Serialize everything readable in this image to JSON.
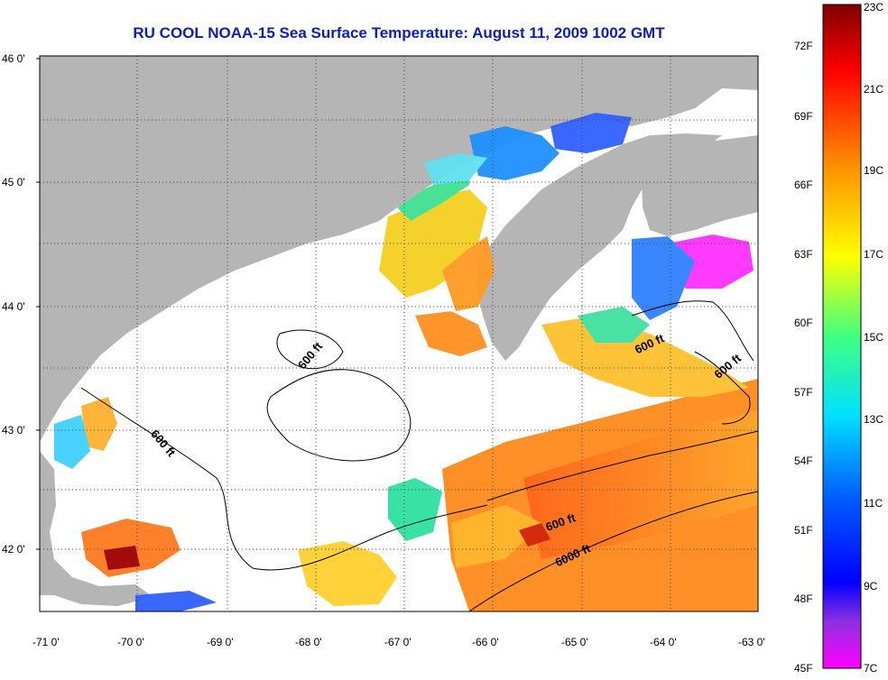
{
  "title": "RU COOL  NOAA-15  Sea Surface Temperature:  August 11, 2009 1002 GMT",
  "lat_ticks": [
    "46 0'",
    "45 0'",
    "44 0'",
    "43 0'",
    "42 0'"
  ],
  "lon_ticks": [
    "-71 0'",
    "-70 0'",
    "-69 0'",
    "-68 0'",
    "-67 0'",
    "-66 0'",
    "-65 0'",
    "-64 0'",
    "-63 0'"
  ],
  "contour_labels": [
    "600 ft",
    "600 ft",
    "600 ft",
    "600 ft",
    "600 ft",
    "6000 ft"
  ],
  "colorbar": {
    "fahrenheit_labels": [
      "72F",
      "69F",
      "66F",
      "63F",
      "60F",
      "57F",
      "54F",
      "51F",
      "48F",
      "45F"
    ],
    "celsius_labels": [
      "23C",
      "21C",
      "19C",
      "17C",
      "15C",
      "13C",
      "11C",
      "9C",
      "7C"
    ],
    "range_celsius": [
      7,
      23
    ]
  },
  "colors": {
    "land": "#b5b5b5",
    "cloud": "#ffffff",
    "title": "#0b1fb3"
  }
}
